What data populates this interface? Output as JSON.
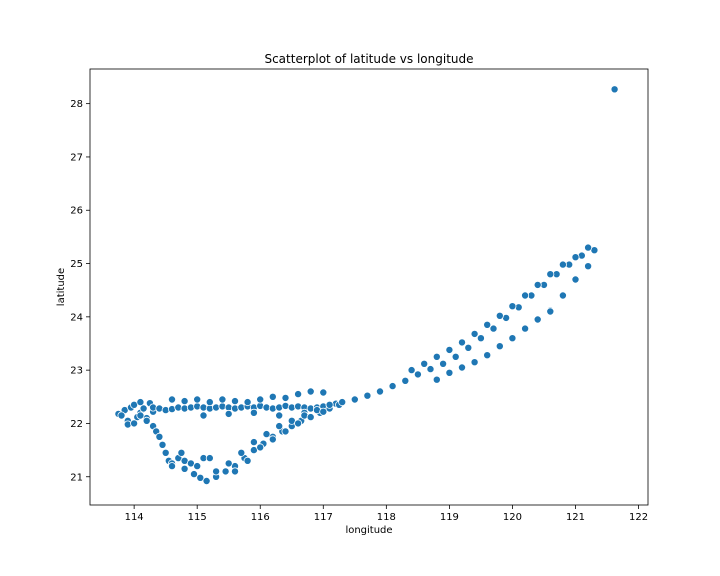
{
  "chart_data": {
    "type": "scatter",
    "title": "Scatterplot of latitude vs longitude",
    "xlabel": "longitude",
    "ylabel": "latitude",
    "xlim": [
      113.3,
      122.15
    ],
    "ylim": [
      20.47,
      28.65
    ],
    "xticks": [
      114,
      115,
      116,
      117,
      118,
      119,
      120,
      121,
      122
    ],
    "yticks": [
      21,
      22,
      23,
      24,
      25,
      26,
      27,
      28
    ],
    "grid": false,
    "legend": "none",
    "marker_color": "#1f77b4",
    "marker_edge_color": "#ffffff",
    "point_groups": [
      {
        "x": [
          113.75,
          113.85,
          113.95,
          114.05,
          114.1,
          113.9,
          114.0,
          114.15,
          114.25,
          114.3,
          114.2,
          113.8,
          113.9,
          114.0,
          114.1
        ],
        "y": [
          22.18,
          22.25,
          22.3,
          22.12,
          22.2,
          22.05,
          22.35,
          22.28,
          22.38,
          22.22,
          22.1,
          22.15,
          21.98,
          22.0,
          22.4
        ]
      },
      {
        "x": [
          114.3,
          114.4,
          114.5,
          114.6,
          114.7,
          114.8,
          114.9,
          115.0,
          115.1,
          115.2,
          115.3,
          115.4,
          115.5,
          115.6,
          115.7,
          115.8,
          115.9,
          116.0,
          116.1,
          116.2,
          116.3,
          116.4,
          116.5,
          116.6,
          116.7,
          116.8,
          116.9,
          117.0,
          117.1,
          117.2,
          117.3
        ],
        "y": [
          22.3,
          22.28,
          22.25,
          22.27,
          22.3,
          22.28,
          22.3,
          22.32,
          22.3,
          22.28,
          22.3,
          22.32,
          22.3,
          22.28,
          22.3,
          22.32,
          22.3,
          22.33,
          22.3,
          22.28,
          22.3,
          22.33,
          22.3,
          22.32,
          22.3,
          22.28,
          22.3,
          22.32,
          22.35,
          22.37,
          22.4
        ]
      },
      {
        "x": [
          114.6,
          114.8,
          115.0,
          115.2,
          115.4,
          115.6,
          115.8,
          116.0,
          116.2,
          116.4,
          116.6,
          116.8,
          117.0,
          115.1,
          115.5,
          115.9,
          116.3,
          116.7
        ],
        "y": [
          22.45,
          22.42,
          22.45,
          22.4,
          22.45,
          22.42,
          22.4,
          22.45,
          22.5,
          22.48,
          22.55,
          22.6,
          22.58,
          22.15,
          22.18,
          22.2,
          22.15,
          22.2
        ]
      },
      {
        "x": [
          114.1,
          114.2,
          114.3,
          114.35,
          114.4,
          114.45,
          114.5,
          114.55,
          114.6,
          114.7,
          114.75,
          114.8,
          114.9,
          115.0,
          115.1,
          115.2
        ],
        "y": [
          22.15,
          22.05,
          21.95,
          21.85,
          21.75,
          21.6,
          21.45,
          21.3,
          21.25,
          21.35,
          21.45,
          21.3,
          21.25,
          21.2,
          21.35,
          21.35
        ]
      },
      {
        "x": [
          114.6,
          114.8,
          114.95,
          115.05,
          115.15,
          115.3,
          115.45,
          115.6,
          115.75,
          115.9,
          116.05,
          116.2,
          116.35,
          116.5,
          116.65,
          116.8,
          116.95,
          117.1,
          117.25
        ],
        "y": [
          21.2,
          21.15,
          21.05,
          20.98,
          20.92,
          21.0,
          21.1,
          21.2,
          21.35,
          21.5,
          21.62,
          21.75,
          21.85,
          21.95,
          22.05,
          22.12,
          22.2,
          22.28,
          22.35
        ]
      },
      {
        "x": [
          115.3,
          115.5,
          115.7,
          115.9,
          116.1,
          116.3,
          116.5,
          116.7,
          116.9,
          117.1,
          115.6,
          115.8,
          116.0,
          116.2,
          116.4,
          116.6,
          116.8,
          117.0
        ],
        "y": [
          21.1,
          21.25,
          21.45,
          21.65,
          21.8,
          21.95,
          22.05,
          22.15,
          22.25,
          22.35,
          21.1,
          21.3,
          21.55,
          21.7,
          21.85,
          22.0,
          22.12,
          22.22
        ]
      },
      {
        "x": [
          117.3,
          117.5,
          117.7,
          117.9,
          118.1,
          118.3,
          118.5,
          118.7,
          118.9,
          119.1,
          119.3,
          119.5,
          119.7,
          119.9,
          120.1,
          120.3,
          120.5,
          120.7,
          120.9,
          121.1,
          121.3
        ],
        "y": [
          22.4,
          22.45,
          22.52,
          22.6,
          22.7,
          22.8,
          22.92,
          23.02,
          23.12,
          23.25,
          23.42,
          23.6,
          23.78,
          23.98,
          24.18,
          24.4,
          24.6,
          24.8,
          24.98,
          25.15,
          25.25
        ]
      },
      {
        "x": [
          118.4,
          118.6,
          118.8,
          119.0,
          119.2,
          119.4,
          119.6,
          119.8,
          120.0,
          120.2,
          120.4,
          120.6,
          120.8,
          121.0,
          121.2
        ],
        "y": [
          23.0,
          23.12,
          23.25,
          23.38,
          23.52,
          23.68,
          23.85,
          24.02,
          24.2,
          24.4,
          24.6,
          24.8,
          24.98,
          25.12,
          25.3
        ]
      },
      {
        "x": [
          118.8,
          119.0,
          119.2,
          119.4,
          119.6,
          119.8,
          120.0,
          120.2,
          120.4,
          120.6,
          120.8,
          121.0,
          121.2
        ],
        "y": [
          22.82,
          22.95,
          23.05,
          23.15,
          23.28,
          23.45,
          23.6,
          23.78,
          23.95,
          24.12,
          24.4,
          24.7,
          24.95
        ]
      },
      {
        "x": [
          120.6,
          121.62
        ],
        "y": [
          24.1,
          28.27
        ]
      }
    ]
  }
}
